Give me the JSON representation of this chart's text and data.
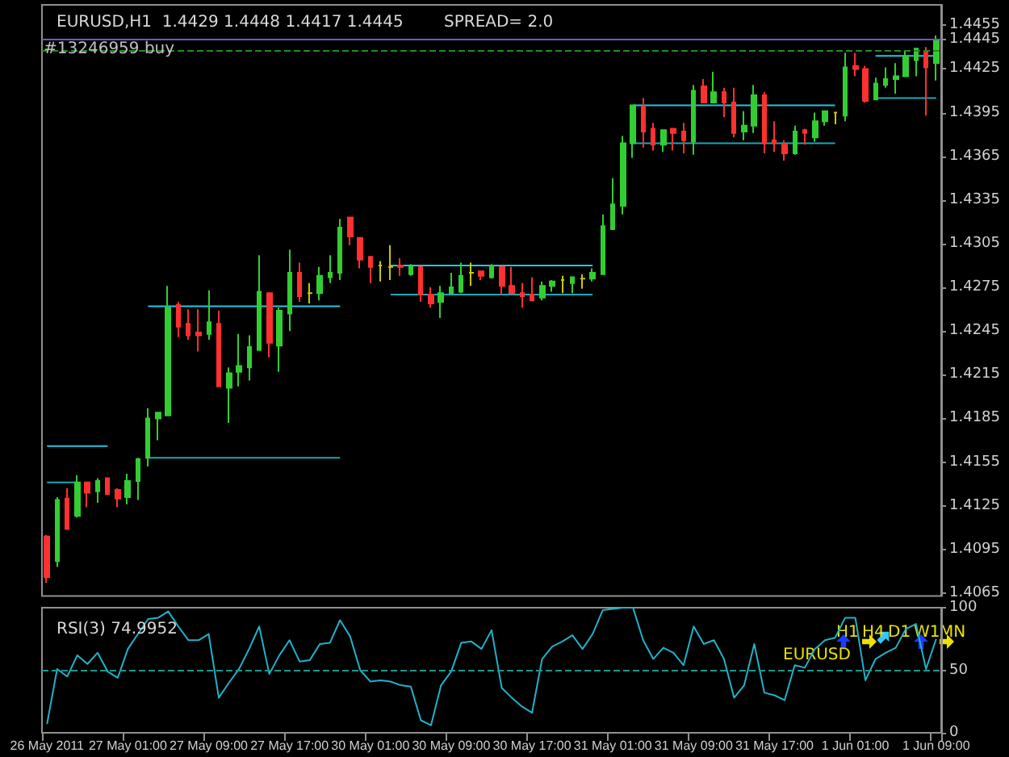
{
  "chart_data": [
    {
      "type": "candlestick",
      "title": "EURUSD,H1  1.4429 1.4448 1.4417 1.4445",
      "subtitle": "SPREAD= 2.0",
      "categories": [
        null,
        null,
        null,
        null,
        null,
        null,
        null,
        null,
        null,
        null,
        null,
        null,
        null,
        null,
        null,
        null,
        null,
        null,
        null,
        null,
        null,
        null,
        null,
        null,
        null,
        null,
        null,
        null,
        null,
        null,
        null,
        null,
        null,
        null,
        null,
        null,
        null,
        null,
        null,
        null,
        null,
        null,
        null,
        null,
        null,
        null,
        null,
        null,
        null,
        null,
        null,
        null,
        null,
        null,
        null,
        null,
        null,
        null,
        null,
        null,
        null,
        null,
        null,
        null,
        null,
        null,
        null,
        null,
        null,
        null,
        null,
        null,
        null,
        null,
        null,
        null,
        null,
        null,
        null,
        null,
        null,
        null,
        null,
        null,
        null,
        null,
        null,
        null,
        null
      ],
      "ohlc": [
        [
          1.4104,
          1.4105,
          1.4072,
          1.4076
        ],
        [
          1.4087,
          1.4131,
          1.4083,
          1.4129
        ],
        [
          1.413,
          1.4137,
          1.4109,
          1.4109
        ],
        [
          1.4118,
          1.4146,
          1.4117,
          1.4141
        ],
        [
          1.4141,
          1.4141,
          1.4124,
          1.4134
        ],
        [
          1.4135,
          1.4144,
          1.4127,
          1.4142
        ],
        [
          1.4144,
          1.4144,
          1.4133,
          1.4133
        ],
        [
          1.4136,
          1.4137,
          1.4124,
          1.413
        ],
        [
          1.4131,
          1.4147,
          1.4126,
          1.4142
        ],
        [
          1.4142,
          1.4158,
          1.4129,
          1.4157
        ],
        [
          1.4158,
          1.4192,
          1.4152,
          1.4185
        ],
        [
          1.4185,
          1.4189,
          1.417,
          1.4189
        ],
        [
          1.4187,
          1.4276,
          1.4187,
          1.4261
        ],
        [
          1.4263,
          1.4265,
          1.4241,
          1.4248
        ],
        [
          1.425,
          1.426,
          1.4239,
          1.4242
        ],
        [
          1.4244,
          1.426,
          1.4231,
          1.4242
        ],
        [
          1.4243,
          1.4273,
          1.4239,
          1.4251
        ],
        [
          1.425,
          1.4259,
          1.4207,
          1.4207
        ],
        [
          1.4206,
          1.422,
          1.4182,
          1.4216
        ],
        [
          1.4217,
          1.4243,
          1.4207,
          1.4221
        ],
        [
          1.422,
          1.4242,
          1.4211,
          1.4234
        ],
        [
          1.4232,
          1.4297,
          1.4232,
          1.4272
        ],
        [
          1.4271,
          1.4271,
          1.4227,
          1.4237
        ],
        [
          1.4235,
          1.4261,
          1.4217,
          1.4259
        ],
        [
          1.4257,
          1.4301,
          1.4245,
          1.4285
        ],
        [
          1.4285,
          1.4292,
          1.4265,
          1.4269
        ],
        [
          1.4271,
          1.4278,
          1.4264,
          1.4271
        ],
        [
          1.4271,
          1.4289,
          1.4266,
          1.4283
        ],
        [
          1.4282,
          1.4297,
          1.4278,
          1.4285
        ],
        [
          1.4285,
          1.4322,
          1.428,
          1.4316
        ],
        [
          1.4323,
          1.4323,
          1.4304,
          1.431
        ],
        [
          1.4309,
          1.4309,
          1.4288,
          1.4294
        ],
        [
          1.4296,
          1.4296,
          1.4278,
          1.4289
        ],
        [
          1.429,
          1.4293,
          1.4279,
          1.429
        ],
        [
          1.4289,
          1.4304,
          1.428,
          1.4289
        ],
        [
          1.429,
          1.4295,
          1.4283,
          1.4289
        ],
        [
          1.4284,
          1.4291,
          1.4283,
          1.4289
        ],
        [
          1.4289,
          1.4289,
          1.4265,
          1.427
        ],
        [
          1.427,
          1.4275,
          1.4261,
          1.4264
        ],
        [
          1.4265,
          1.4276,
          1.4254,
          1.4271
        ],
        [
          1.4271,
          1.4285,
          1.4271,
          1.4275
        ],
        [
          1.4272,
          1.4292,
          1.4271,
          1.4283
        ],
        [
          1.4285,
          1.4292,
          1.4276,
          1.4285
        ],
        [
          1.4286,
          1.4286,
          1.428,
          1.4283
        ],
        [
          1.4282,
          1.4291,
          1.4281,
          1.429
        ],
        [
          1.4289,
          1.4289,
          1.427,
          1.4276
        ],
        [
          1.4276,
          1.4289,
          1.4271,
          1.4271
        ],
        [
          1.4271,
          1.4278,
          1.4261,
          1.4269
        ],
        [
          1.427,
          1.4282,
          1.4266,
          1.4266
        ],
        [
          1.4268,
          1.4279,
          1.4266,
          1.4276
        ],
        [
          1.4276,
          1.428,
          1.4272,
          1.4279
        ],
        [
          1.428,
          1.4283,
          1.4271,
          1.428
        ],
        [
          1.4278,
          1.4282,
          1.4271,
          1.4282
        ],
        [
          1.4281,
          1.4284,
          1.4274,
          1.4281
        ],
        [
          1.4281,
          1.4288,
          1.4279,
          1.4285
        ],
        [
          1.4284,
          1.4325,
          1.4284,
          1.4317
        ],
        [
          1.4315,
          1.435,
          1.4315,
          1.4332
        ],
        [
          1.4331,
          1.4379,
          1.4325,
          1.4374
        ],
        [
          1.4374,
          1.44,
          1.4364,
          1.44
        ],
        [
          1.4399,
          1.4405,
          1.4371,
          1.4382
        ],
        [
          1.4384,
          1.4388,
          1.4369,
          1.4373
        ],
        [
          1.4373,
          1.4383,
          1.4368,
          1.4383
        ],
        [
          1.4384,
          1.4384,
          1.4369,
          1.4381
        ],
        [
          1.4382,
          1.4388,
          1.4367,
          1.4376
        ],
        [
          1.4375,
          1.4414,
          1.4366,
          1.441
        ],
        [
          1.4413,
          1.4418,
          1.4402,
          1.4402
        ],
        [
          1.4402,
          1.4423,
          1.4402,
          1.4409
        ],
        [
          1.4409,
          1.4412,
          1.4392,
          1.4402
        ],
        [
          1.4402,
          1.4412,
          1.4378,
          1.4381
        ],
        [
          1.4382,
          1.4396,
          1.4376,
          1.4386
        ],
        [
          1.4386,
          1.4414,
          1.4381,
          1.4407
        ],
        [
          1.4407,
          1.4409,
          1.4367,
          1.4374
        ],
        [
          1.4376,
          1.4389,
          1.4368,
          1.4374
        ],
        [
          1.4373,
          1.4376,
          1.4362,
          1.4367
        ],
        [
          1.4367,
          1.4386,
          1.4366,
          1.4382
        ],
        [
          1.4383,
          1.4384,
          1.4373,
          1.4381
        ],
        [
          1.4378,
          1.4395,
          1.4375,
          1.4389
        ],
        [
          1.4389,
          1.4396,
          1.4386,
          1.4396
        ],
        [
          1.4395,
          1.4395,
          1.4387,
          1.4395
        ],
        [
          1.4393,
          1.4436,
          1.4389,
          1.4426
        ],
        [
          1.4427,
          1.4436,
          1.442,
          1.4425
        ],
        [
          1.4425,
          1.4427,
          1.4402,
          1.4403
        ],
        [
          1.4404,
          1.4419,
          1.4404,
          1.4415
        ],
        [
          1.4414,
          1.4426,
          1.4412,
          1.4418
        ],
        [
          1.4418,
          1.4429,
          1.4408,
          1.442
        ],
        [
          1.442,
          1.4437,
          1.442,
          1.4434
        ],
        [
          1.4431,
          1.4439,
          1.442,
          1.4439
        ],
        [
          1.4437,
          1.444,
          1.4393,
          1.4426
        ],
        [
          1.4429,
          1.4448,
          1.4417,
          1.4445
        ]
      ],
      "colors": [
        "#ff3030",
        "#32cd32",
        "#ff3030",
        "#32cd32",
        "#ff3030",
        "#32cd32",
        "#ff3030",
        "#ff3030",
        "#32cd32",
        "#32cd32",
        "#32cd32",
        "#32cd32",
        "#32cd32",
        "#ff3030",
        "#ff3030",
        "#ff3030",
        "#32cd32",
        "#ff3030",
        "#32cd32",
        "#32cd32",
        "#32cd32",
        "#32cd32",
        "#ff3030",
        "#32cd32",
        "#32cd32",
        "#ff3030",
        "#c8c800",
        "#32cd32",
        "#32cd32",
        "#32cd32",
        "#ff3030",
        "#ff3030",
        "#ff3030",
        "#c8c800",
        "#c8c800",
        "#ff3030",
        "#32cd32",
        "#ff3030",
        "#ff3030",
        "#32cd32",
        "#32cd32",
        "#32cd32",
        "#c8c800",
        "#ff3030",
        "#32cd32",
        "#ff3030",
        "#ff3030",
        "#ff3030",
        "#ff3030",
        "#32cd32",
        "#32cd32",
        "#c8c800",
        "#32cd32",
        "#c8c800",
        "#32cd32",
        "#32cd32",
        "#32cd32",
        "#32cd32",
        "#32cd32",
        "#ff3030",
        "#ff3030",
        "#32cd32",
        "#ff3030",
        "#ff3030",
        "#32cd32",
        "#ff3030",
        "#32cd32",
        "#ff3030",
        "#ff3030",
        "#32cd32",
        "#32cd32",
        "#ff3030",
        "#ff3030",
        "#ff3030",
        "#32cd32",
        "#ff3030",
        "#32cd32",
        "#32cd32",
        "#c8c800",
        "#32cd32",
        "#ff3030",
        "#ff3030",
        "#32cd32",
        "#32cd32",
        "#32cd32",
        "#32cd32",
        "#32cd32",
        "#ff3030",
        "#32cd32"
      ],
      "series": [
        {
          "type": "line",
          "color": "#1ec8e6",
          "values": [
            1.4166,
            1.4166,
            1.4166,
            1.4166,
            1.4166,
            1.4166,
            1.4166,
            null,
            null,
            null,
            1.4262,
            1.4262,
            1.4262,
            1.4262,
            1.4262,
            1.4262,
            1.4262,
            1.4262,
            1.4262,
            1.4262,
            1.4262,
            1.4262,
            1.4262,
            1.4262,
            1.4262,
            1.4262,
            1.4262,
            1.4262,
            1.4262,
            1.4262,
            null,
            null,
            null,
            null,
            1.429,
            1.429,
            1.429,
            1.429,
            1.429,
            1.429,
            1.429,
            1.429,
            1.429,
            1.429,
            1.429,
            1.429,
            1.429,
            1.429,
            1.429,
            1.429,
            1.429,
            1.429,
            1.429,
            1.429,
            1.429,
            null,
            null,
            null,
            1.44,
            1.44,
            1.44,
            1.44,
            1.44,
            1.44,
            1.44,
            1.44,
            1.44,
            1.44,
            1.44,
            1.44,
            1.44,
            1.44,
            1.44,
            1.44,
            1.44,
            1.44,
            1.44,
            1.44,
            1.44,
            null,
            null,
            null,
            1.4434,
            1.4434,
            1.4434,
            1.4434,
            1.4434,
            1.4434,
            1.4434
          ]
        },
        {
          "type": "line",
          "color": "#1aa8b8",
          "values": [
            1.4141,
            1.4141,
            1.4141,
            1.4141,
            null,
            null,
            null,
            null,
            null,
            null,
            1.4158,
            1.4158,
            1.4158,
            1.4158,
            1.4158,
            1.4158,
            1.4158,
            1.4158,
            1.4158,
            1.4158,
            1.4158,
            1.4158,
            1.4158,
            1.4158,
            1.4158,
            1.4158,
            1.4158,
            1.4158,
            1.4158,
            1.4158,
            null,
            null,
            null,
            null,
            1.427,
            1.427,
            1.427,
            1.427,
            1.427,
            1.427,
            1.427,
            1.427,
            1.427,
            1.427,
            1.427,
            1.427,
            1.427,
            1.427,
            1.427,
            1.427,
            1.427,
            1.427,
            1.427,
            1.427,
            1.427,
            null,
            null,
            null,
            1.4374,
            1.4374,
            1.4374,
            1.4374,
            1.4374,
            1.4374,
            1.4374,
            1.4374,
            1.4374,
            1.4374,
            1.4374,
            1.4374,
            1.4374,
            1.4374,
            1.4374,
            1.4374,
            1.4374,
            1.4374,
            1.4374,
            1.4374,
            1.4374,
            null,
            null,
            null,
            1.4405,
            1.4405,
            1.4405,
            1.4405,
            1.4405,
            1.4405,
            1.4405
          ]
        }
      ],
      "ylim": [
        1.4063,
        1.4469
      ],
      "yticks": [
        1.4065,
        1.4095,
        1.4125,
        1.4155,
        1.4185,
        1.4215,
        1.4245,
        1.4275,
        1.4305,
        1.4335,
        1.4365,
        1.4395,
        1.4425,
        1.4445,
        1.4455
      ],
      "tick_labels": "y",
      "ref_lines": [
        {
          "axis": "y",
          "value": 1.4445,
          "label": "#13246959 buy",
          "color": "#6a5acd"
        },
        {
          "axis": "y",
          "value": 1.4438,
          "color": "#228b22",
          "line_style": "dashed"
        }
      ]
    },
    {
      "type": "line",
      "title": "RSI(3) 74.9952",
      "categories": [
        "26 May 2011",
        null,
        null,
        null,
        null,
        null,
        null,
        null,
        "27 May 01:00",
        null,
        null,
        null,
        null,
        null,
        null,
        null,
        "27 May 09:00",
        null,
        null,
        null,
        null,
        null,
        null,
        null,
        "27 May 17:00",
        null,
        null,
        null,
        null,
        null,
        null,
        null,
        "30 May 01:00",
        null,
        null,
        null,
        null,
        null,
        null,
        null,
        "30 May 09:00",
        null,
        null,
        null,
        null,
        null,
        null,
        null,
        "30 May 17:00",
        null,
        null,
        null,
        null,
        null,
        null,
        null,
        "31 May 01:00",
        null,
        null,
        null,
        null,
        null,
        null,
        null,
        "31 May 09:00",
        null,
        null,
        null,
        null,
        null,
        null,
        null,
        "31 May 17:00",
        null,
        null,
        null,
        null,
        null,
        null,
        null,
        "1 Jun 01:00",
        null,
        null,
        null,
        null,
        null,
        null,
        null,
        "1 Jun 09:00"
      ],
      "color": "#20b2c8",
      "values": [
        7,
        51,
        45,
        62,
        55,
        64,
        49,
        44,
        67,
        79,
        91,
        92,
        97,
        85,
        74,
        74,
        79,
        28,
        40,
        51,
        67,
        85,
        47,
        62,
        74,
        57,
        58,
        71,
        72,
        90,
        77,
        50,
        41,
        42,
        41,
        38,
        37,
        10,
        6,
        38,
        49,
        72,
        73,
        67,
        82,
        36,
        28,
        21,
        16,
        59,
        69,
        73,
        78,
        67,
        79,
        98,
        99,
        100,
        100,
        74,
        59,
        68,
        64,
        54,
        85,
        71,
        74,
        59,
        28,
        38,
        71,
        32,
        30,
        26,
        54,
        52,
        67,
        74,
        76,
        92,
        92,
        42,
        59,
        64,
        68,
        83,
        87,
        51,
        75
      ],
      "ylim": [
        0,
        100
      ],
      "yticks": [
        0,
        50,
        100
      ],
      "ref_lines": [
        {
          "axis": "y",
          "value": 50,
          "color": "#1a9a8a",
          "line_style": "dashed"
        }
      ],
      "annotations": [
        "EURUSD",
        "H1",
        "H4",
        "D1",
        "W1",
        "MN"
      ]
    }
  ]
}
